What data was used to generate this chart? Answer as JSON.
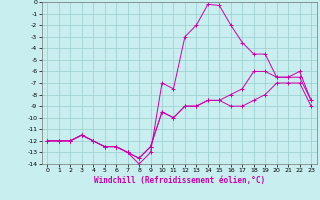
{
  "xlabel": "Windchill (Refroidissement éolien,°C)",
  "background_color": "#c8eef0",
  "grid_color": "#99cccc",
  "line_color": "#cc00aa",
  "xlim": [
    -0.5,
    23.5
  ],
  "ylim": [
    -14,
    0
  ],
  "xticks": [
    0,
    1,
    2,
    3,
    4,
    5,
    6,
    7,
    8,
    9,
    10,
    11,
    12,
    13,
    14,
    15,
    16,
    17,
    18,
    19,
    20,
    21,
    22,
    23
  ],
  "yticks": [
    0,
    -1,
    -2,
    -3,
    -4,
    -5,
    -6,
    -7,
    -8,
    -9,
    -10,
    -11,
    -12,
    -13,
    -14
  ],
  "line1": [
    -12,
    -12,
    -12,
    -11.5,
    -12,
    -12.5,
    -12.5,
    -13,
    -14,
    -13,
    -7,
    -7.5,
    -3,
    -2,
    -0.2,
    -0.3,
    -2,
    -3.5,
    -4.5,
    -4.5,
    -6.5,
    -6.5,
    -6.5,
    -8.5
  ],
  "line2": [
    -12,
    -12,
    -12,
    -11.5,
    -12,
    -12.5,
    -12.5,
    -13,
    -13.5,
    -12.5,
    -9.5,
    -10,
    -9,
    -9,
    -8.5,
    -8.5,
    -8,
    -7.5,
    -6,
    -6,
    -6.5,
    -6.5,
    -6,
    -8.5
  ],
  "line3": [
    -12,
    -12,
    -12,
    -11.5,
    -12,
    -12.5,
    -12.5,
    -13,
    -13.5,
    -12.5,
    -9.5,
    -10,
    -9,
    -9,
    -8.5,
    -8.5,
    -9,
    -9,
    -8.5,
    -8,
    -7,
    -7,
    -7,
    -9
  ],
  "marker": "+",
  "markersize": 2.5,
  "linewidth": 0.7,
  "tick_fontsize": 4.5,
  "xlabel_fontsize": 5.5
}
